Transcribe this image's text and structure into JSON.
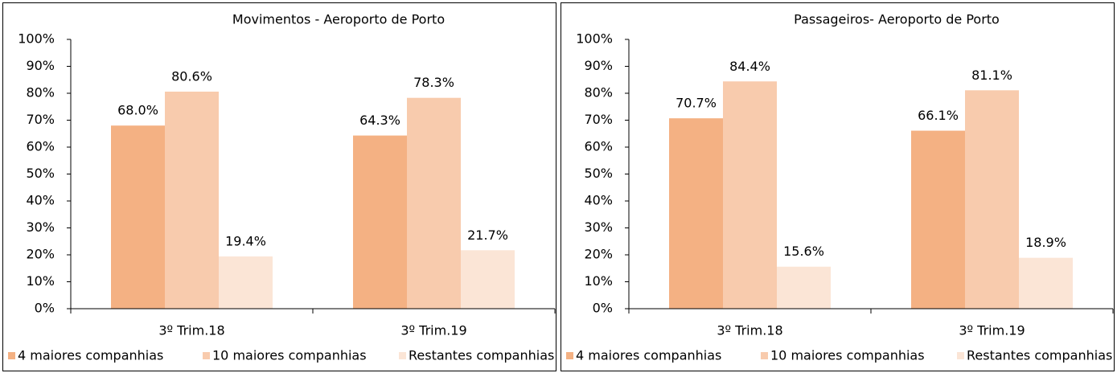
{
  "chart_data": [
    {
      "type": "bar",
      "title": "Movimentos - Aeroporto de Porto",
      "categories": [
        "3º Trim.18",
        "3º Trim.19"
      ],
      "series": [
        {
          "name": "4 maiores companhias",
          "color": "#f4b183",
          "values": [
            68.0,
            64.3
          ],
          "value_labels": [
            "68.0%",
            "64.3%"
          ]
        },
        {
          "name": "10 maiores companhias",
          "color": "#f8cbad",
          "values": [
            80.6,
            78.3
          ],
          "value_labels": [
            "80.6%",
            "78.3%"
          ]
        },
        {
          "name": "Restantes companhias",
          "color": "#fbe5d6",
          "values": [
            19.4,
            21.7
          ],
          "value_labels": [
            "19.4%",
            "21.7%"
          ]
        }
      ],
      "ylim": [
        0,
        100
      ],
      "yticks": [
        {
          "value": 0,
          "label": "0%"
        },
        {
          "value": 10,
          "label": "10%"
        },
        {
          "value": 20,
          "label": "20%"
        },
        {
          "value": 30,
          "label": "30%"
        },
        {
          "value": 40,
          "label": "40%"
        },
        {
          "value": 50,
          "label": "50%"
        },
        {
          "value": 60,
          "label": "60%"
        },
        {
          "value": 70,
          "label": "70%"
        },
        {
          "value": 80,
          "label": "80%"
        },
        {
          "value": 90,
          "label": "90%"
        },
        {
          "value": 100,
          "label": "100%"
        }
      ],
      "legend": "bottom"
    },
    {
      "type": "bar",
      "title": "Passageiros- Aeroporto de Porto",
      "categories": [
        "3º Trim.18",
        "3º Trim.19"
      ],
      "series": [
        {
          "name": "4 maiores companhias",
          "color": "#f4b183",
          "values": [
            70.7,
            66.1
          ],
          "value_labels": [
            "70.7%",
            "66.1%"
          ]
        },
        {
          "name": "10 maiores companhias",
          "color": "#f8cbad",
          "values": [
            84.4,
            81.1
          ],
          "value_labels": [
            "84.4%",
            "81.1%"
          ]
        },
        {
          "name": "Restantes companhias",
          "color": "#fbe5d6",
          "values": [
            15.6,
            18.9
          ],
          "value_labels": [
            "15.6%",
            "18.9%"
          ]
        }
      ],
      "ylim": [
        0,
        100
      ],
      "yticks": [
        {
          "value": 0,
          "label": "0%"
        },
        {
          "value": 10,
          "label": "10%"
        },
        {
          "value": 20,
          "label": "20%"
        },
        {
          "value": 30,
          "label": "30%"
        },
        {
          "value": 40,
          "label": "40%"
        },
        {
          "value": 50,
          "label": "50%"
        },
        {
          "value": 60,
          "label": "60%"
        },
        {
          "value": 70,
          "label": "70%"
        },
        {
          "value": 80,
          "label": "80%"
        },
        {
          "value": 90,
          "label": "90%"
        },
        {
          "value": 100,
          "label": "100%"
        }
      ],
      "legend": "bottom"
    }
  ]
}
